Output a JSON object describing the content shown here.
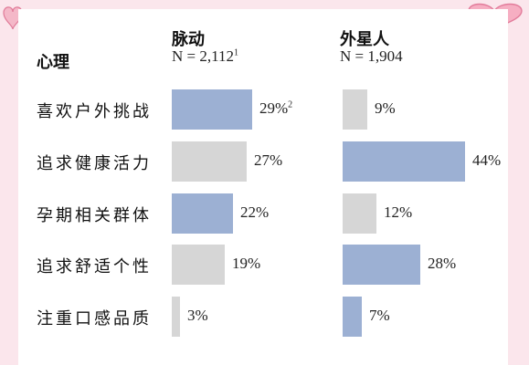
{
  "header": {
    "row_label": "心理",
    "brands": [
      {
        "name": "脉动",
        "n_text": "N = 2,112",
        "n_sup": "1"
      },
      {
        "name": "外星人",
        "n_text": "N = 1,904",
        "n_sup": ""
      }
    ]
  },
  "colors": {
    "highlight": "#9cb0d3",
    "neutral": "#d6d6d6",
    "background": "#fbe6ec"
  },
  "chart_data": {
    "type": "bar",
    "orientation": "horizontal",
    "categories": [
      "喜欢户外挑战",
      "追求健康活力",
      "孕期相关群体",
      "追求舒适个性",
      "注重口感品质"
    ],
    "series": [
      {
        "name": "脉动",
        "values": [
          29,
          27,
          22,
          19,
          3
        ],
        "value_labels": [
          "29%",
          "27%",
          "22%",
          "19%",
          "3%"
        ],
        "value_sups": [
          "2",
          "",
          "",
          "",
          ""
        ],
        "highlighted": [
          true,
          false,
          true,
          false,
          false
        ]
      },
      {
        "name": "外星人",
        "values": [
          9,
          44,
          12,
          28,
          7
        ],
        "value_labels": [
          "9%",
          "44%",
          "12%",
          "28%",
          "7%"
        ],
        "value_sups": [
          "",
          "",
          "",
          "",
          ""
        ],
        "highlighted": [
          false,
          true,
          false,
          true,
          true
        ]
      }
    ],
    "xlim": [
      0,
      44
    ]
  }
}
